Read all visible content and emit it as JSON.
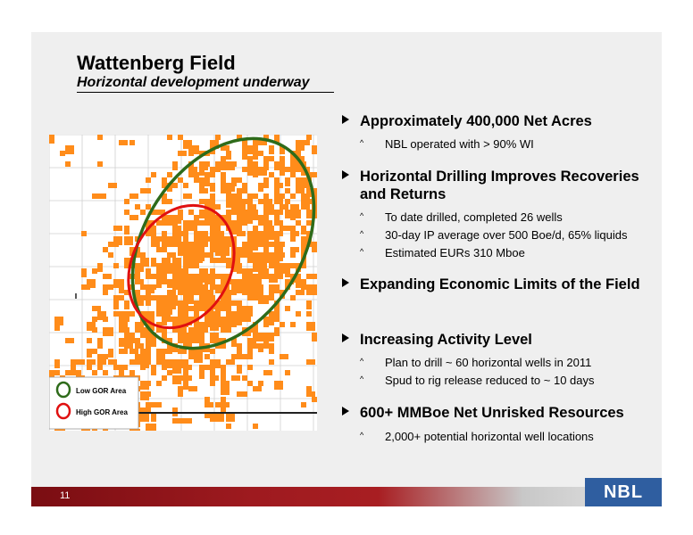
{
  "title": "Wattenberg Field",
  "subtitle": "Horizontal development underway",
  "bullets": [
    {
      "text": "Approximately 400,000 Net Acres",
      "subs": [
        "NBL operated with > 90% WI"
      ]
    },
    {
      "text": "Horizontal Drilling Improves Recoveries and Returns",
      "subs": [
        "To date drilled, completed 26 wells",
        "30-day IP average over 500 Boe/d, 65% liquids",
        "Estimated EURs 310 Mboe"
      ]
    },
    {
      "text": "Expanding Economic Limits of the Field",
      "subs": []
    },
    {
      "text": "Increasing Activity Level",
      "subs": [
        "Plan to drill ~ 60 horizontal wells in 2011",
        "Spud to rig release reduced to ~ 10 days"
      ]
    },
    {
      "text": "600+ MMBoe Net Unrisked Resources",
      "subs": [
        "2,000+ potential horizontal well locations"
      ]
    }
  ],
  "legend": {
    "low_gor": "Low GOR Area",
    "high_gor": "High GOR Area"
  },
  "colors": {
    "acreage": "#ff8c1a",
    "low_gor": "#2e6b1a",
    "high_gor": "#e01010",
    "footer": "#9e1a1f",
    "logo": "#2f5ea0"
  },
  "page_number": "11",
  "logo_text": "NBL",
  "icons": {
    "bullet": "triangle-right-icon",
    "sub_bullet": "small-caret-icon"
  }
}
